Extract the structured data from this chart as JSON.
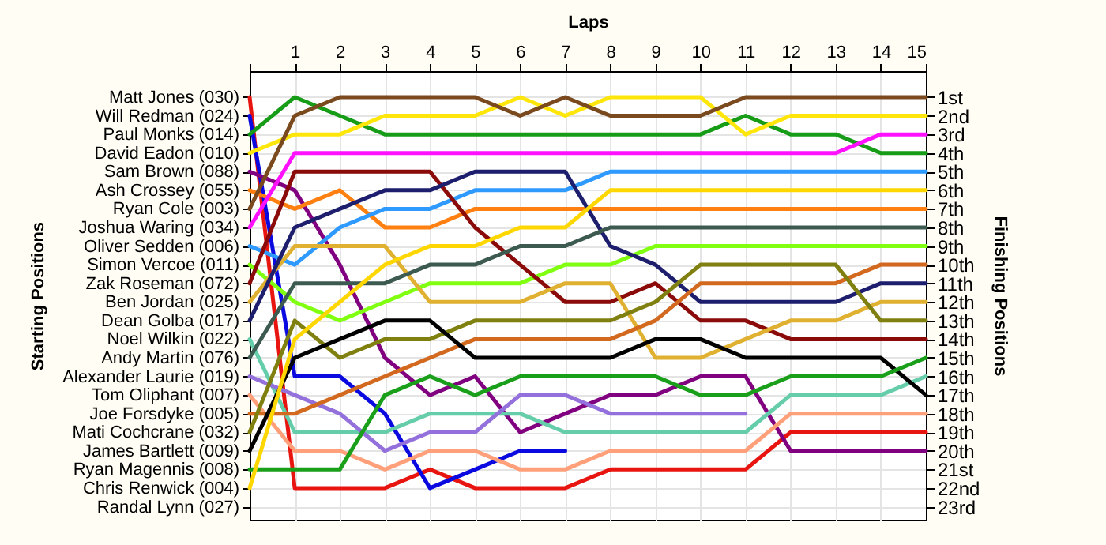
{
  "chart_data": {
    "type": "line",
    "xlabel": "Laps",
    "annotations": [
      "Starting Positions"
    ],
    "y2label": "Finishing Positions",
    "x": [
      0,
      1,
      2,
      3,
      4,
      5,
      6,
      7,
      8,
      9,
      10,
      11,
      12,
      13,
      14,
      15
    ],
    "xlim": [
      0,
      15
    ],
    "xticks": [
      {
        "value": 0,
        "label": null
      },
      1,
      2,
      3,
      4,
      5,
      6,
      7,
      8,
      9,
      10,
      11,
      12,
      13,
      14,
      15
    ],
    "y_categories": [
      "Matt Jones (030)",
      "Will Redman (024)",
      "Paul Monks (014)",
      "David Eadon (010)",
      "Sam Brown (088)",
      "Ash Crossey (055)",
      "Ryan Cole (003)",
      "Joshua Waring (034)",
      "Oliver Sedden (006)",
      "Simon Vercoe (011)",
      "Zak Roseman (072)",
      "Ben Jordan (025)",
      "Dean Golba (017)",
      "Noel Wilkin (022)",
      "Andy Martin (076)",
      "Alexander Laurie (019)",
      "Tom Oliphant (007)",
      "Joe Forsdyke (005)",
      "Mati Cochcrane (032)",
      "James Bartlett (009)",
      "Ryan Magennis (008)",
      "Chris Renwick (004)",
      "Randal Lynn (027)"
    ],
    "y2lim": [
      23.7,
      -0.4
    ],
    "y2ticks": [
      {
        "value": 1,
        "label": "1st"
      },
      {
        "value": 2,
        "label": "2nd"
      },
      {
        "value": 3,
        "label": "3rd"
      },
      {
        "value": 4,
        "label": "4th"
      },
      {
        "value": 5,
        "label": "5th"
      },
      {
        "value": 6,
        "label": "6th"
      },
      {
        "value": 7,
        "label": "7th"
      },
      {
        "value": 8,
        "label": "8th"
      },
      {
        "value": 9,
        "label": "9th"
      },
      {
        "value": 10,
        "label": "10th"
      },
      {
        "value": 11,
        "label": "11th"
      },
      {
        "value": 12,
        "label": "12th"
      },
      {
        "value": 13,
        "label": "13th"
      },
      {
        "value": 14,
        "label": "14th"
      },
      {
        "value": 15,
        "label": "15th"
      },
      {
        "value": 16,
        "label": "16th"
      },
      {
        "value": 17,
        "label": "17th"
      },
      {
        "value": 18,
        "label": "18th"
      },
      {
        "value": 19,
        "label": "19th"
      },
      {
        "value": 20,
        "label": "20th"
      },
      {
        "value": 21,
        "label": "21st"
      },
      {
        "value": 22,
        "label": "22nd"
      },
      {
        "value": 23,
        "label": "23rd"
      }
    ],
    "grid": true,
    "legend": false,
    "marker": "none",
    "line_style": "solid",
    "series": [
      {
        "color": "#e8140f",
        "axis": "y2",
        "values": [
          1,
          22,
          22,
          22,
          21,
          22,
          22,
          22,
          21,
          21,
          21,
          21,
          19,
          19,
          19,
          19
        ]
      },
      {
        "color": "#0a0ae0",
        "axis": "y2",
        "values": [
          2,
          16,
          16,
          18,
          22,
          21,
          20,
          20,
          null,
          null,
          null,
          null,
          null,
          null,
          null,
          null
        ]
      },
      {
        "color": "#169c16",
        "axis": "y2",
        "values": [
          3,
          1,
          2,
          3,
          3,
          3,
          3,
          3,
          3,
          3,
          3,
          2,
          3,
          3,
          4,
          4
        ]
      },
      {
        "color": "#ffe60a",
        "axis": "y2",
        "values": [
          4,
          3,
          3,
          2,
          2,
          2,
          1,
          2,
          1,
          1,
          1,
          3,
          2,
          2,
          2,
          2
        ]
      },
      {
        "color": "#800080",
        "axis": "y2",
        "values": [
          5,
          6,
          10,
          15,
          17,
          16,
          19,
          18,
          17,
          17,
          16,
          16,
          20,
          20,
          20,
          20
        ]
      },
      {
        "color": "#ff8010",
        "axis": "y2",
        "values": [
          6,
          7,
          6,
          8,
          8,
          7,
          7,
          7,
          7,
          7,
          7,
          7,
          7,
          7,
          7,
          7
        ]
      },
      {
        "color": "#7a4a1e",
        "axis": "y2",
        "values": [
          7,
          2,
          1,
          1,
          1,
          1,
          2,
          1,
          2,
          2,
          2,
          1,
          1,
          1,
          1,
          1
        ]
      },
      {
        "color": "#ff10ff",
        "axis": "y2",
        "values": [
          8,
          4,
          4,
          4,
          4,
          4,
          4,
          4,
          4,
          4,
          4,
          4,
          4,
          4,
          3,
          3
        ]
      },
      {
        "color": "#2e9aff",
        "axis": "y2",
        "values": [
          9,
          10,
          8,
          7,
          7,
          6,
          6,
          6,
          5,
          5,
          5,
          5,
          5,
          5,
          5,
          5
        ]
      },
      {
        "color": "#80ff10",
        "axis": "y2",
        "values": [
          10,
          12,
          13,
          12,
          11,
          11,
          11,
          10,
          10,
          9,
          9,
          9,
          9,
          9,
          9,
          9
        ]
      },
      {
        "color": "#8b0a0a",
        "axis": "y2",
        "values": [
          11,
          5,
          5,
          5,
          5,
          8,
          10,
          12,
          12,
          11,
          13,
          13,
          14,
          14,
          14,
          14
        ]
      },
      {
        "color": "#e0b030",
        "axis": "y2",
        "values": [
          12,
          9,
          9,
          9,
          12,
          12,
          12,
          11,
          11,
          15,
          15,
          14,
          13,
          13,
          12,
          12
        ]
      },
      {
        "color": "#1e1e6e",
        "axis": "y2",
        "values": [
          13,
          8,
          7,
          6,
          6,
          5,
          5,
          5,
          9,
          10,
          12,
          12,
          12,
          12,
          11,
          11
        ]
      },
      {
        "color": "#66cdaa",
        "axis": "y2",
        "values": [
          14,
          19,
          19,
          19,
          18,
          18,
          18,
          19,
          19,
          19,
          19,
          19,
          17,
          17,
          17,
          16
        ]
      },
      {
        "color": "#3c5a50",
        "axis": "y2",
        "values": [
          15,
          11,
          11,
          11,
          10,
          10,
          9,
          9,
          8,
          8,
          8,
          8,
          8,
          8,
          8,
          8
        ]
      },
      {
        "color": "#9370db",
        "axis": "y2",
        "values": [
          16,
          17,
          18,
          20,
          19,
          19,
          17,
          17,
          18,
          18,
          18,
          18,
          null,
          null,
          null,
          null
        ]
      },
      {
        "color": "#ffa07a",
        "axis": "y2",
        "values": [
          17,
          20,
          20,
          21,
          20,
          20,
          21,
          21,
          20,
          20,
          20,
          20,
          18,
          18,
          18,
          18
        ]
      },
      {
        "color": "#d2691e",
        "axis": "y2",
        "values": [
          18,
          18,
          17,
          16,
          15,
          14,
          14,
          14,
          14,
          13,
          11,
          11,
          11,
          11,
          10,
          10
        ]
      },
      {
        "color": "#808010",
        "axis": "y2",
        "values": [
          19,
          13,
          15,
          14,
          14,
          13,
          13,
          13,
          13,
          12,
          10,
          10,
          10,
          10,
          13,
          13
        ]
      },
      {
        "color": "#000000",
        "axis": "y2",
        "values": [
          20,
          15,
          14,
          13,
          13,
          15,
          15,
          15,
          15,
          14,
          14,
          15,
          15,
          15,
          15,
          17
        ]
      },
      {
        "color": "#1a9f1a",
        "axis": "y2",
        "values": [
          21,
          21,
          21,
          17,
          16,
          17,
          16,
          16,
          16,
          16,
          17,
          17,
          16,
          16,
          16,
          15
        ]
      },
      {
        "color": "#ffd700",
        "axis": "y2",
        "values": [
          22,
          14,
          12,
          10,
          9,
          9,
          8,
          8,
          6,
          6,
          6,
          6,
          6,
          6,
          6,
          6
        ]
      }
    ]
  }
}
